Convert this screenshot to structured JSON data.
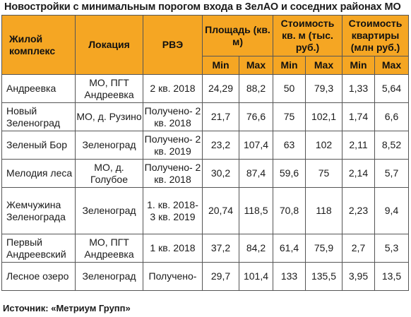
{
  "title": "Новостройки с минимальным порогом входа в ЗелАО и соседних районах МО",
  "headers": {
    "complex": "Жилой комплекс",
    "location": "Локация",
    "rve": "РВЭ",
    "area": "Площадь (кв. м)",
    "price_sqm": "Стоимость кв. м (тыс. руб.)",
    "price_apt": "Стоимость квартиры (млн руб.)",
    "min": "Min",
    "max": "Max"
  },
  "rows": [
    {
      "name": "Андреевка",
      "location": "МО, ПГТ Андреевка",
      "rve": "2 кв. 2018",
      "area_min": "24,29",
      "area_max": "88,2",
      "sqm_min": "50",
      "sqm_max": "79,3",
      "apt_min": "1,33",
      "apt_max": "5,64"
    },
    {
      "name": "Новый Зеленоград",
      "location": "МО, д. Рузино",
      "rve": "Получено- 2 кв. 2018",
      "area_min": "21,7",
      "area_max": "76,6",
      "sqm_min": "75",
      "sqm_max": "102,1",
      "apt_min": "1,74",
      "apt_max": "6,6"
    },
    {
      "name": "Зеленый Бор",
      "location": "Зеленоград",
      "rve": "Получено- 2 кв. 2019",
      "area_min": "23,2",
      "area_max": "107,4",
      "sqm_min": "63",
      "sqm_max": "102",
      "apt_min": "2,11",
      "apt_max": "8,52"
    },
    {
      "name": "Мелодия леса",
      "location": "МО, д. Голубое",
      "rve": "Получено- 2 кв. 2018",
      "area_min": "30,2",
      "area_max": "87,4",
      "sqm_min": "59,6",
      "sqm_max": "75",
      "apt_min": "2,14",
      "apt_max": "5,7"
    },
    {
      "name": "Жемчужина Зеленограда",
      "location": "Зеленоград",
      "rve": "1. кв. 2018- 3 кв. 2019",
      "area_min": "20,74",
      "area_max": "118,5",
      "sqm_min": "70,8",
      "sqm_max": "118",
      "apt_min": "2,23",
      "apt_max": "9,4"
    },
    {
      "name": "Первый Андреевский",
      "location": "МО, ПГТ Андреевка",
      "rve": "1 кв. 2018",
      "area_min": "37,2",
      "area_max": "84,2",
      "sqm_min": "61,4",
      "sqm_max": "75,9",
      "apt_min": "2,7",
      "apt_max": "5,3"
    },
    {
      "name": "Лесное озеро",
      "location": "Зеленоград",
      "rve": "Получено-",
      "area_min": "29,7",
      "area_max": "101,4",
      "sqm_min": "133",
      "sqm_max": "135,5",
      "apt_min": "3,95",
      "apt_max": "13,5"
    }
  ],
  "source": "Источник: «Метриум Групп»"
}
